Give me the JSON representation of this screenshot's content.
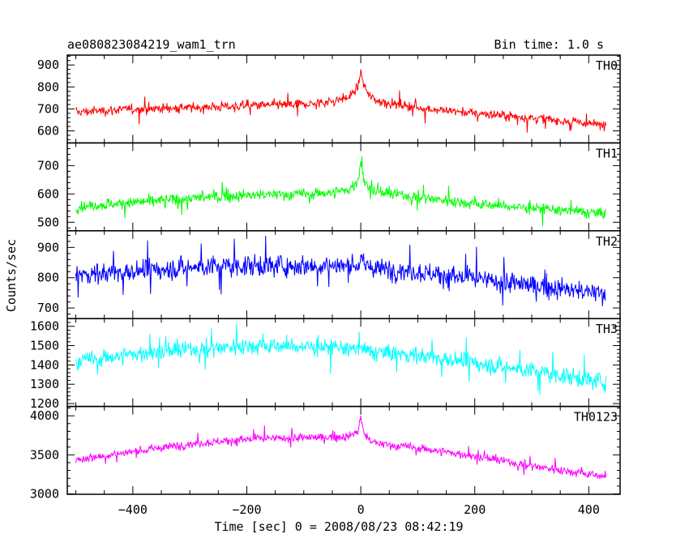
{
  "header": {
    "title": "ae080823084219_wam1_trn",
    "bin_time": "Bin time: 1.0 s"
  },
  "axes": {
    "xlabel": "Time [sec] 0 = 2008/08/23 08:42:19",
    "ylabel": "Counts/sec",
    "xlim": [
      -515,
      455
    ],
    "xticks": [
      -400,
      -200,
      0,
      200,
      400
    ],
    "xtick_labels": [
      "−400",
      "−200",
      "0",
      "200",
      "400"
    ]
  },
  "chart_data": [
    {
      "type": "line",
      "name": "TH0",
      "color": "#ff0000",
      "ylim": [
        545,
        945
      ],
      "yticks": [
        600,
        700,
        800,
        900
      ],
      "x": [
        -500,
        -400,
        -300,
        -200,
        -100,
        -50,
        -20,
        -5,
        0,
        5,
        15,
        30,
        100,
        200,
        300,
        430
      ],
      "y": [
        685,
        700,
        705,
        715,
        720,
        735,
        755,
        800,
        870,
        810,
        760,
        735,
        705,
        680,
        660,
        625
      ],
      "noise": 22
    },
    {
      "type": "line",
      "name": "TH1",
      "color": "#00ff00",
      "ylim": [
        470,
        780
      ],
      "yticks": [
        500,
        600,
        700
      ],
      "x": [
        -500,
        -400,
        -300,
        -200,
        -100,
        -50,
        -20,
        -5,
        0,
        5,
        15,
        30,
        100,
        200,
        300,
        430
      ],
      "y": [
        555,
        570,
        585,
        595,
        600,
        605,
        615,
        645,
        715,
        650,
        620,
        605,
        590,
        565,
        550,
        530
      ],
      "noise": 20
    },
    {
      "type": "line",
      "name": "TH2",
      "color": "#0000ff",
      "ylim": [
        665,
        955
      ],
      "yticks": [
        700,
        800,
        900
      ],
      "x": [
        -500,
        -400,
        -300,
        -200,
        -100,
        -50,
        -20,
        -5,
        0,
        5,
        15,
        30,
        100,
        200,
        300,
        430
      ],
      "y": [
        810,
        820,
        835,
        840,
        840,
        840,
        838,
        845,
        860,
        840,
        835,
        830,
        820,
        795,
        775,
        745
      ],
      "noise": 35
    },
    {
      "type": "line",
      "name": "TH3",
      "color": "#00ffff",
      "ylim": [
        1185,
        1640
      ],
      "yticks": [
        1200,
        1300,
        1400,
        1500,
        1600
      ],
      "x": [
        -500,
        -400,
        -300,
        -200,
        -100,
        -50,
        -20,
        -5,
        0,
        5,
        15,
        30,
        100,
        200,
        300,
        430
      ],
      "y": [
        1420,
        1455,
        1480,
        1500,
        1495,
        1490,
        1485,
        1480,
        1485,
        1475,
        1470,
        1465,
        1450,
        1410,
        1370,
        1310
      ],
      "noise": 45
    },
    {
      "type": "line",
      "name": "TH0123",
      "color": "#ff00ff",
      "ylim": [
        2995,
        4120
      ],
      "yticks": [
        3000,
        3500,
        4000
      ],
      "x": [
        -500,
        -400,
        -300,
        -200,
        -100,
        -50,
        -20,
        -5,
        0,
        5,
        15,
        30,
        100,
        200,
        300,
        430
      ],
      "y": [
        3440,
        3540,
        3640,
        3700,
        3720,
        3725,
        3735,
        3800,
        3990,
        3780,
        3690,
        3640,
        3590,
        3480,
        3360,
        3220
      ],
      "noise": 55
    }
  ]
}
